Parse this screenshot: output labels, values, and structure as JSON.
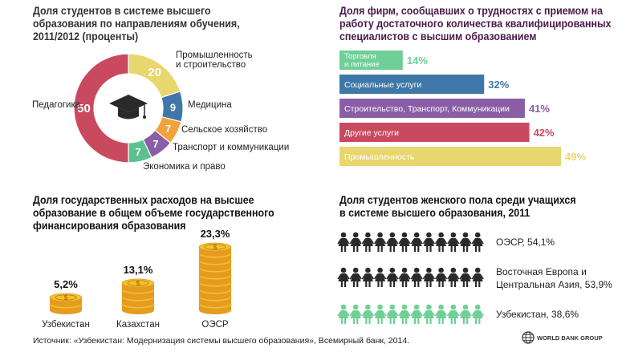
{
  "donut": {
    "title": "Доля студентов в системе высшего образования по направлениям обучения, 2011/2012 (проценты)",
    "icon": "graduation-cap-icon",
    "center_color": "#ffffff"
  },
  "firms": {
    "title": "Доля фирм, сообщавших о трудностях с приемом на работу достаточного количества квалифицированных специалистов с высшим образованием"
  },
  "spending": {
    "title": "Доля государственных расходов на высшее образование в общем объеме государственного финансирования образования",
    "icon": "coin-stack-icon"
  },
  "female": {
    "title": "Доля студентов женского пола среди учащихся в системе высшего образования, 2011",
    "icon": "female-figure-icon"
  },
  "footer": {
    "source": "Источник: «Узбекистан: Модернизация системы высшего образования», Всемирный банк, 2014.",
    "logo_text": "WORLD BANK GROUP",
    "logo_icon": "globe-icon"
  },
  "chart_data": [
    {
      "type": "pie",
      "labels": [
        "Промышленность и строительство",
        "Медицина",
        "Сельское хозяйство",
        "Транспорт и коммуникации",
        "Экономика и право",
        "Педагогика"
      ],
      "label_lines": [
        [
          "Промышленность",
          "и строительство"
        ],
        [
          "Медицина"
        ],
        [
          "Сельское хозяйство"
        ],
        [
          "Транспорт и коммуникации"
        ],
        [
          "Экономика и право"
        ],
        [
          "Педагогика"
        ]
      ],
      "values": [
        20,
        9,
        7,
        7,
        7,
        50
      ],
      "value_labels": [
        "20",
        "9",
        "7",
        "7",
        "7",
        "50"
      ],
      "colors": [
        "#e8d66e",
        "#3f78a8",
        "#f0a23c",
        "#8a5ea6",
        "#5cc18e",
        "#c94a5e"
      ]
    },
    {
      "type": "bar",
      "orientation": "horizontal",
      "categories": [
        "Торговля и питание",
        "Социальные услуги",
        "Строительство, Транспорт, Коммуникации",
        "Другие услуги",
        "Промышленность"
      ],
      "category_lines": [
        [
          "Торговля",
          "и питание"
        ],
        [
          "Социальные услуги"
        ],
        [
          "Строительство, Транспорт, Коммуникации"
        ],
        [
          "Другие услуги"
        ],
        [
          "Промышленность"
        ]
      ],
      "values": [
        14,
        32,
        41,
        42,
        49
      ],
      "value_labels": [
        "14%",
        "32%",
        "41%",
        "42%",
        "49%"
      ],
      "colors": [
        "#6fcf97",
        "#3f78a8",
        "#8a5ea6",
        "#c94a5e",
        "#e8d66e"
      ],
      "xlim": [
        0,
        49
      ]
    },
    {
      "type": "bar",
      "categories": [
        "Узбекистан",
        "Казахстан",
        "ОЭСР"
      ],
      "values": [
        5.2,
        13.1,
        23.3
      ],
      "value_labels": [
        "5,2%",
        "13,1%",
        "23,3%"
      ],
      "stack_coins": [
        2,
        4,
        9
      ],
      "colors": [
        "#f2c230",
        "#e59b1f"
      ]
    },
    {
      "type": "bar",
      "rows": [
        {
          "label_lines": [
            "ОЭСР, 54,1%"
          ],
          "value": 54.1,
          "figures": 12,
          "color": "#2a2a2a"
        },
        {
          "label_lines": [
            "Восточная Европа и",
            "Центральная Азия, 53,9%"
          ],
          "value": 53.9,
          "figures": 12,
          "color": "#2a2a2a"
        },
        {
          "label_lines": [
            "Узбекистан, 38,6%"
          ],
          "value": 38.6,
          "figures": 12,
          "color": "#6fcf97"
        }
      ]
    }
  ]
}
